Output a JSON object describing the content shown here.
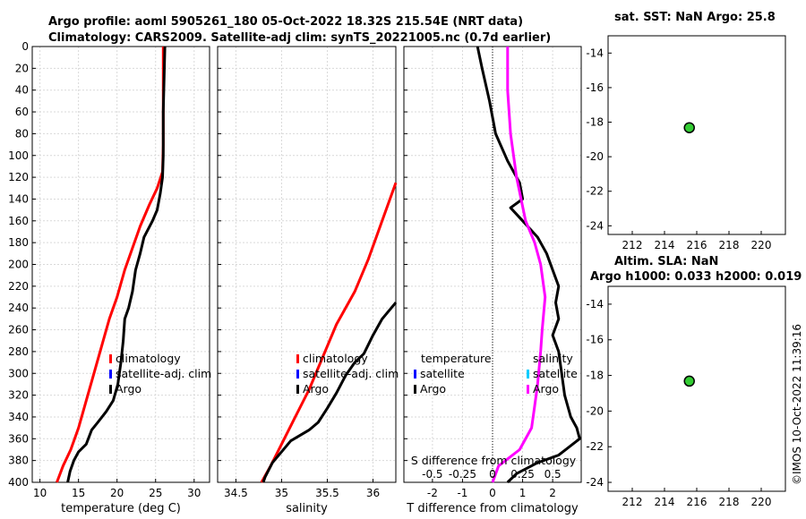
{
  "header": {
    "title_line1": "Argo profile: aoml 5905261_180 05-Oct-2022 18.32S 215.54E (NRT data)",
    "title_line2": "Climatology: CARS2009. Satellite-adj clim: synTS_20221005.nc (0.7d earlier)"
  },
  "watermark": "©IMOS 10-Oct-2022 11:39:16",
  "colors": {
    "climatology": "#ff0000",
    "satellite": "#0000ff",
    "argo": "#000000",
    "salinity_diff": "#ff00ff",
    "salinity_sat": "#00ccff",
    "map_marker": "#33cc33"
  },
  "chart_data": [
    {
      "type": "line",
      "name": "temperature-profile",
      "xlabel": "temperature (deg C)",
      "xlim": [
        9,
        32
      ],
      "ylim": [
        0,
        400
      ],
      "y_reversed": true,
      "xticks": [
        10,
        15,
        20,
        25,
        30
      ],
      "yticks": [
        0,
        20,
        40,
        60,
        80,
        100,
        120,
        140,
        160,
        180,
        200,
        220,
        240,
        260,
        280,
        300,
        320,
        340,
        360,
        380,
        400
      ],
      "legend": [
        "climatology",
        "satellite-adj. clim",
        "Argo"
      ],
      "series": [
        {
          "name": "climatology",
          "color": "#ff0000",
          "points": [
            [
              26.0,
              0
            ],
            [
              26.0,
              50
            ],
            [
              26.0,
              90
            ],
            [
              25.9,
              115
            ],
            [
              25.2,
              130
            ],
            [
              24.2,
              145
            ],
            [
              23.0,
              165
            ],
            [
              22.0,
              185
            ],
            [
              21.0,
              205
            ],
            [
              20.0,
              230
            ],
            [
              19.0,
              250
            ],
            [
              18.0,
              275
            ],
            [
              17.0,
              300
            ],
            [
              16.0,
              325
            ],
            [
              15.0,
              350
            ],
            [
              14.0,
              370
            ],
            [
              13.0,
              385
            ],
            [
              12.2,
              400
            ]
          ]
        },
        {
          "name": "Argo",
          "color": "#000000",
          "points": [
            [
              26.2,
              0
            ],
            [
              26.1,
              30
            ],
            [
              26.0,
              60
            ],
            [
              26.0,
              100
            ],
            [
              25.9,
              120
            ],
            [
              25.6,
              135
            ],
            [
              25.2,
              150
            ],
            [
              24.6,
              160
            ],
            [
              23.5,
              175
            ],
            [
              23.0,
              190
            ],
            [
              22.4,
              205
            ],
            [
              22.0,
              225
            ],
            [
              21.5,
              240
            ],
            [
              21.0,
              250
            ],
            [
              20.8,
              270
            ],
            [
              20.5,
              290
            ],
            [
              20.1,
              310
            ],
            [
              19.5,
              325
            ],
            [
              18.6,
              335
            ],
            [
              17.5,
              345
            ],
            [
              16.7,
              352
            ],
            [
              16.0,
              365
            ],
            [
              15.0,
              372
            ],
            [
              14.4,
              380
            ],
            [
              13.9,
              390
            ],
            [
              13.6,
              400
            ]
          ]
        }
      ]
    },
    {
      "type": "line",
      "name": "salinity-profile",
      "xlabel": "salinity",
      "xlim": [
        34.3,
        36.25
      ],
      "ylim": [
        0,
        400
      ],
      "y_reversed": true,
      "xticks": [
        34.5,
        35,
        35.5,
        36
      ],
      "legend": [
        "climatology",
        "satellite-adj. clim",
        "Argo"
      ],
      "series": [
        {
          "name": "climatology",
          "color": "#ff0000",
          "points": [
            [
              36.25,
              125
            ],
            [
              36.1,
              160
            ],
            [
              35.95,
              195
            ],
            [
              35.8,
              225
            ],
            [
              35.6,
              255
            ],
            [
              35.45,
              285
            ],
            [
              35.3,
              315
            ],
            [
              35.15,
              340
            ],
            [
              35.0,
              365
            ],
            [
              34.88,
              385
            ],
            [
              34.78,
              400
            ]
          ]
        },
        {
          "name": "Argo",
          "color": "#000000",
          "points": [
            [
              36.25,
              235
            ],
            [
              36.1,
              250
            ],
            [
              36.0,
              265
            ],
            [
              35.9,
              282
            ],
            [
              35.8,
              290
            ],
            [
              35.7,
              302
            ],
            [
              35.6,
              318
            ],
            [
              35.5,
              332
            ],
            [
              35.4,
              345
            ],
            [
              35.3,
              352
            ],
            [
              35.1,
              362
            ],
            [
              35.0,
              372
            ],
            [
              34.9,
              382
            ],
            [
              34.82,
              395
            ],
            [
              34.8,
              400
            ]
          ]
        }
      ]
    },
    {
      "type": "line",
      "name": "difference-profile",
      "xlabel": "T difference from climatology",
      "top_axis_label": "S difference from climatology",
      "xlim": [
        -2.95,
        2.95
      ],
      "ylim": [
        0,
        400
      ],
      "y_reversed": true,
      "xticks": [
        -2,
        -1,
        0,
        1,
        2
      ],
      "top_ticks": [
        "-0.5",
        "-0.25",
        "0",
        "0.25",
        "0.5"
      ],
      "legend_left": [
        "temperature",
        "satellite",
        "Argo"
      ],
      "legend_right": [
        "salinity",
        "satellite",
        "Argo"
      ],
      "series": [
        {
          "name": "T-Argo",
          "color": "#000000",
          "points": [
            [
              -0.5,
              0
            ],
            [
              -0.35,
              20
            ],
            [
              -0.1,
              50
            ],
            [
              0.1,
              80
            ],
            [
              0.5,
              105
            ],
            [
              0.9,
              125
            ],
            [
              1.0,
              140
            ],
            [
              0.6,
              148
            ],
            [
              1.0,
              160
            ],
            [
              1.5,
              175
            ],
            [
              1.8,
              190
            ],
            [
              2.0,
              205
            ],
            [
              2.2,
              220
            ],
            [
              2.1,
              235
            ],
            [
              2.2,
              250
            ],
            [
              2.0,
              265
            ],
            [
              2.2,
              280
            ],
            [
              2.3,
              300
            ],
            [
              2.4,
              320
            ],
            [
              2.6,
              340
            ],
            [
              2.8,
              350
            ],
            [
              2.9,
              360
            ],
            [
              2.2,
              375
            ],
            [
              1.5,
              382
            ],
            [
              0.8,
              392
            ],
            [
              0.5,
              400
            ]
          ]
        },
        {
          "name": "S-Argo",
          "color": "#ff00ff",
          "points": [
            [
              0.5,
              0
            ],
            [
              0.5,
              40
            ],
            [
              0.6,
              80
            ],
            [
              0.8,
              120
            ],
            [
              1.1,
              160
            ],
            [
              1.4,
              180
            ],
            [
              1.6,
              200
            ],
            [
              1.75,
              230
            ],
            [
              1.65,
              260
            ],
            [
              1.6,
              280
            ],
            [
              1.5,
              310
            ],
            [
              1.4,
              330
            ],
            [
              1.3,
              350
            ],
            [
              0.9,
              370
            ],
            [
              0.2,
              385
            ],
            [
              0.0,
              400
            ]
          ]
        }
      ]
    },
    {
      "type": "scatter",
      "name": "sst-map",
      "title": "sat. SST: NaN Argo: 25.8",
      "xlim": [
        210.5,
        221.5
      ],
      "ylim": [
        -24.5,
        -13
      ],
      "xticks": [
        212,
        214,
        216,
        218,
        220
      ],
      "yticks": [
        -14,
        -16,
        -18,
        -20,
        -22,
        -24
      ],
      "points": [
        {
          "x": 215.54,
          "y": -18.32
        }
      ]
    },
    {
      "type": "scatter",
      "name": "sla-map",
      "title": "Altim. SLA: NaN",
      "subtitle": "Argo h1000: 0.033 h2000: 0.019",
      "xlim": [
        210.5,
        221.5
      ],
      "ylim": [
        -24.5,
        -13
      ],
      "xticks": [
        212,
        214,
        216,
        218,
        220
      ],
      "yticks": [
        -14,
        -16,
        -18,
        -20,
        -22,
        -24
      ],
      "points": [
        {
          "x": 215.54,
          "y": -18.32
        }
      ]
    }
  ]
}
